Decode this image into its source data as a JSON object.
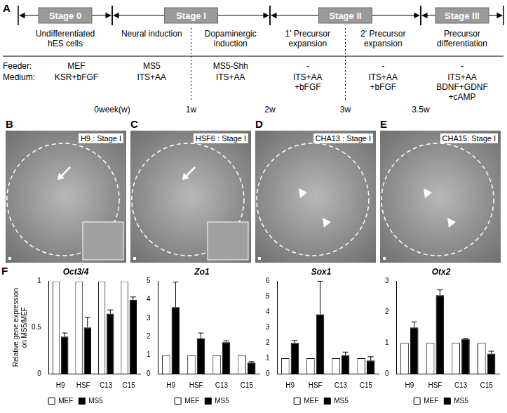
{
  "timeline": {
    "letter": "A",
    "row_labels": [
      "Feeder:",
      "Medium:"
    ],
    "stages": [
      {
        "name": "Stage 0",
        "steps": [
          {
            "title": [
              "Undifferentiated",
              "hES cells"
            ],
            "feeder": "MEF",
            "medium": [
              "KSR+bFGF"
            ]
          }
        ]
      },
      {
        "name": "Stage I",
        "steps": [
          {
            "title": [
              "Neural induction"
            ],
            "feeder": "MS5",
            "medium": [
              "ITS+AA"
            ]
          },
          {
            "title": [
              "Dopaminergic",
              "induction"
            ],
            "feeder": "MS5-Shh",
            "medium": [
              "ITS+AA"
            ]
          }
        ]
      },
      {
        "name": "Stage II",
        "steps": [
          {
            "title": [
              "1' Precursor",
              "expansion"
            ],
            "feeder": "-",
            "medium": [
              "ITS+AA",
              "+bFGF"
            ]
          },
          {
            "title": [
              "2' Precursor",
              "expansion"
            ],
            "feeder": "-",
            "medium": [
              "ITS+AA",
              "+bFGF"
            ]
          }
        ]
      },
      {
        "name": "Stage III",
        "steps": [
          {
            "title": [
              "Precursor",
              "differentiation"
            ],
            "feeder": "-",
            "medium": [
              "ITS+AA",
              "BDNF+GDNF",
              "+cAMP"
            ]
          }
        ]
      }
    ],
    "times": [
      "0week(w)",
      "1w",
      "2w",
      "3w",
      "3.5w"
    ]
  },
  "images": [
    {
      "letter": "B",
      "label": "H9 : Stage I"
    },
    {
      "letter": "C",
      "label": "HSF6 : Stage I"
    },
    {
      "letter": "D",
      "label": "CHA13 : Stage I"
    },
    {
      "letter": "E",
      "label": "CHA15: Stage I"
    }
  ],
  "charts_letter": "F",
  "chart_data": [
    {
      "type": "bar",
      "title": "Oct3/4",
      "y_label": "Relative gene expression on MS5/MEF",
      "categories": [
        "H9",
        "HSF",
        "C13",
        "C15"
      ],
      "series": [
        {
          "name": "MEF",
          "color": "#ffffff",
          "values": [
            1,
            1,
            1,
            1
          ]
        },
        {
          "name": "MS5",
          "color": "#000000",
          "values": [
            0.4,
            0.5,
            0.65,
            0.8
          ],
          "errors": [
            0.04,
            0.11,
            0.04,
            0.03
          ]
        }
      ],
      "ylim": [
        0,
        1
      ],
      "yticks": [
        0,
        0.5,
        1
      ],
      "legend": "bottom",
      "grid": false
    },
    {
      "type": "bar",
      "title": "Zo1",
      "categories": [
        "H9",
        "HSF",
        "C13",
        "C15"
      ],
      "series": [
        {
          "name": "MEF",
          "color": "#ffffff",
          "values": [
            1,
            1,
            1,
            1
          ]
        },
        {
          "name": "MS5",
          "color": "#000000",
          "values": [
            3.6,
            1.9,
            1.7,
            0.6
          ],
          "errors": [
            1.35,
            0.3,
            0.08,
            0.05
          ]
        }
      ],
      "ylim": [
        0,
        5
      ],
      "yticks": [
        0,
        1,
        2,
        3,
        4,
        5
      ],
      "legend": "bottom",
      "grid": false
    },
    {
      "type": "bar",
      "title": "Sox1",
      "categories": [
        "H9",
        "HSF",
        "C13",
        "C15"
      ],
      "series": [
        {
          "name": "MEF",
          "color": "#ffffff",
          "values": [
            1,
            1,
            1,
            1
          ]
        },
        {
          "name": "MS5",
          "color": "#000000",
          "values": [
            2.0,
            3.85,
            1.2,
            0.85
          ],
          "errors": [
            0.15,
            2.15,
            0.2,
            0.25
          ]
        }
      ],
      "ylim": [
        0,
        6
      ],
      "yticks": [
        0,
        1,
        2,
        3,
        4,
        5,
        6
      ],
      "legend": "bottom",
      "grid": false
    },
    {
      "type": "bar",
      "title": "Otx2",
      "categories": [
        "H9",
        "HSF",
        "C13",
        "C15"
      ],
      "series": [
        {
          "name": "MEF",
          "color": "#ffffff",
          "values": [
            1,
            1,
            1,
            1
          ]
        },
        {
          "name": "MS5",
          "color": "#000000",
          "values": [
            1.5,
            2.55,
            1.12,
            0.65
          ],
          "errors": [
            0.18,
            0.17,
            0.03,
            0.08
          ]
        }
      ],
      "ylim": [
        0,
        3
      ],
      "yticks": [
        0,
        1,
        2,
        3
      ],
      "legend": "bottom",
      "grid": false
    }
  ]
}
